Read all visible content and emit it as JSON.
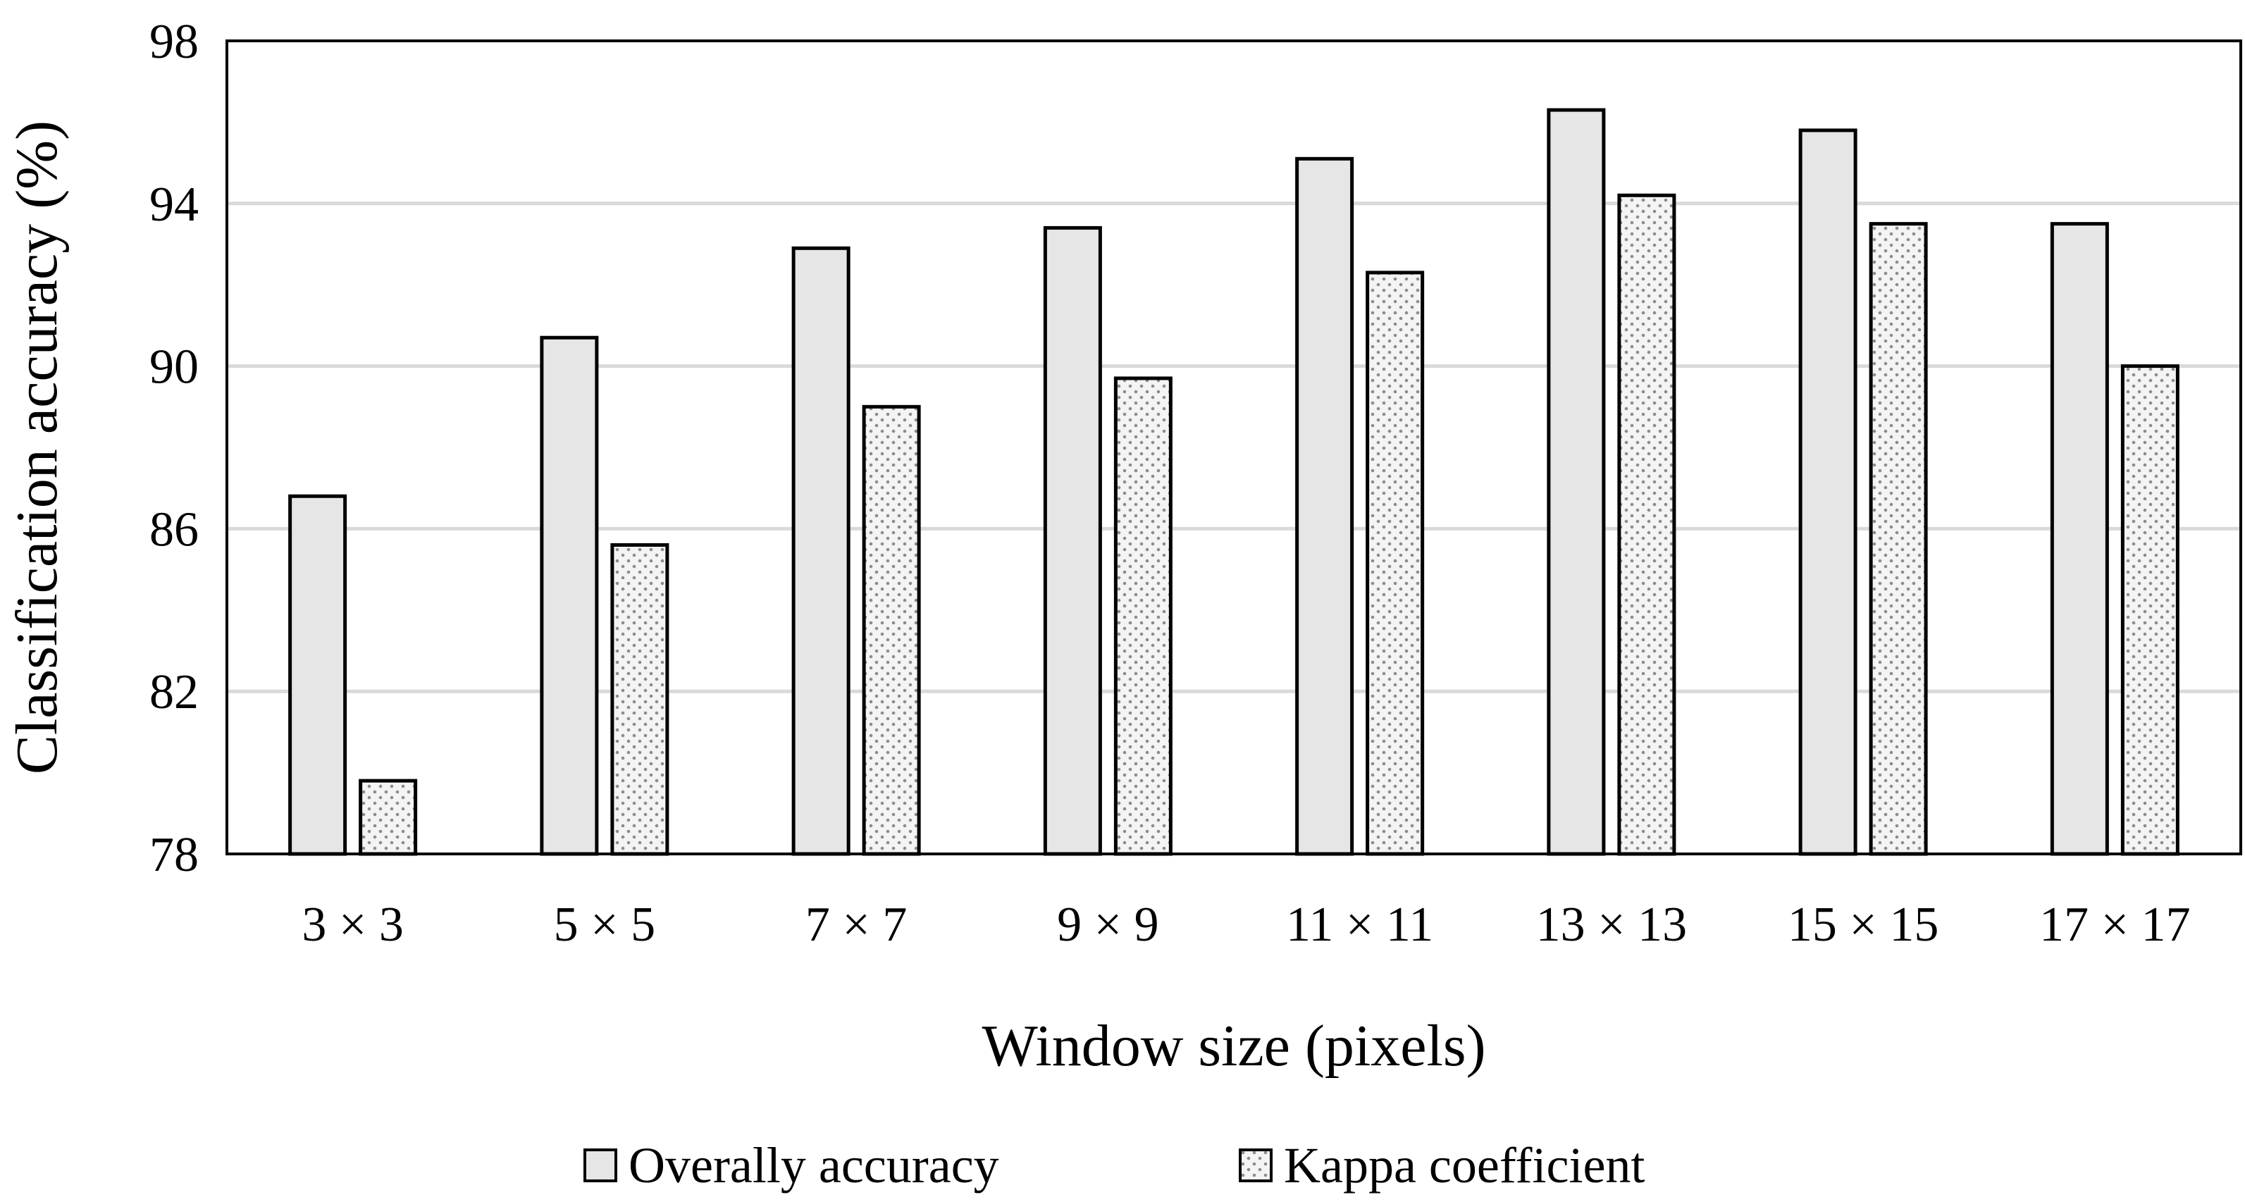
{
  "chart_data": {
    "type": "bar",
    "categories": [
      "3 × 3",
      "5 × 5",
      "7 × 7",
      "9 × 9",
      "11 × 11",
      "13 × 13",
      "15 × 15",
      "17 × 17"
    ],
    "series": [
      {
        "name": "Overally accuracy",
        "values": [
          86.8,
          90.7,
          92.9,
          93.4,
          95.1,
          96.3,
          95.8,
          93.5
        ],
        "fill": "#e6e6e6",
        "pattern": "solid"
      },
      {
        "name": "Kappa coefficient",
        "values": [
          79.8,
          85.6,
          89.0,
          89.7,
          92.3,
          94.2,
          93.5,
          90.0
        ],
        "fill": "#f2f2f2",
        "pattern": "dots"
      }
    ],
    "xlabel": "Window size (pixels)",
    "ylabel": "Classification accuracy (%)",
    "ylim": [
      78,
      98
    ],
    "yticks": [
      "78",
      "82",
      "86",
      "90",
      "94",
      "98"
    ],
    "grid": true,
    "legend_position": "bottom",
    "colors": {
      "gridline": "#d9d9d9",
      "axis": "#000000",
      "bar_stroke": "#000000"
    }
  }
}
